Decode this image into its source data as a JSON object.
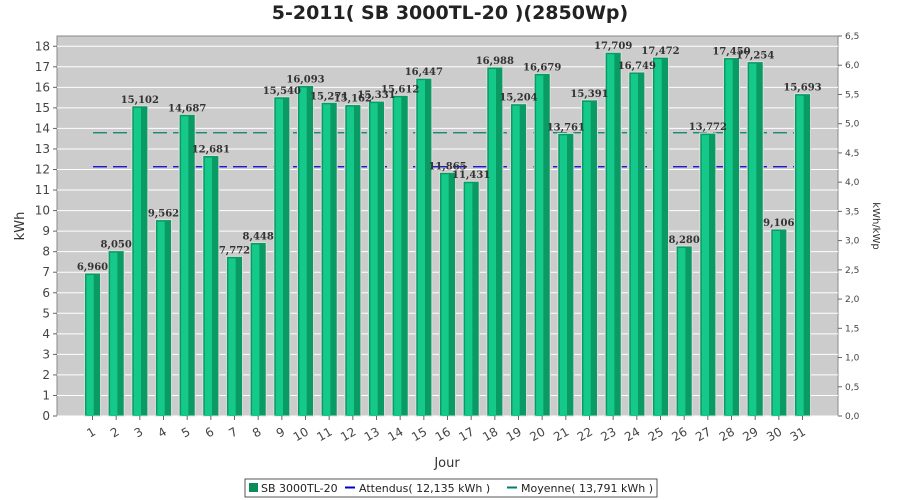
{
  "chart_data": {
    "type": "bar",
    "title": "5-2011( SB 3000TL-20 )(2850Wp)",
    "xlabel": "Jour",
    "ylabel": "kWh",
    "ylabel_right": "kWh/kWp",
    "ylim": [
      0,
      18.5
    ],
    "ylim_right": [
      0,
      6.5
    ],
    "yticks": [
      0,
      1,
      2,
      3,
      4,
      5,
      6,
      7,
      8,
      9,
      10,
      11,
      12,
      13,
      14,
      15,
      16,
      17,
      18
    ],
    "yticks_right": [
      "0,0",
      "0,5",
      "1,0",
      "1,5",
      "2,0",
      "2,5",
      "3,0",
      "3,5",
      "4,0",
      "4,5",
      "5,0",
      "5,5",
      "6,0",
      "6,5"
    ],
    "categories": [
      "1",
      "2",
      "3",
      "4",
      "5",
      "6",
      "7",
      "8",
      "9",
      "10",
      "11",
      "12",
      "13",
      "14",
      "15",
      "16",
      "17",
      "18",
      "19",
      "20",
      "21",
      "22",
      "23",
      "24",
      "25",
      "26",
      "27",
      "28",
      "29",
      "30",
      "31"
    ],
    "series": [
      {
        "name": "SB 3000TL-20",
        "values": [
          6.96,
          8.05,
          15.102,
          9.562,
          14.687,
          12.681,
          7.772,
          8.448,
          15.54,
          16.093,
          15.271,
          15.162,
          15.331,
          15.612,
          16.447,
          11.865,
          11.431,
          16.988,
          15.204,
          16.679,
          13.761,
          15.391,
          17.709,
          16.749,
          17.472,
          8.28,
          13.772,
          17.45,
          17.254,
          9.106,
          15.693
        ],
        "labels": [
          "6,960",
          "8,050",
          "15,102",
          "9,562",
          "14,687",
          "12,681",
          "7,772",
          "8,448",
          "15,540",
          "16,093",
          "15,271",
          "15,162",
          "15,331",
          "15,612",
          "16,447",
          "11,865",
          "11,431",
          "16,988",
          "15,204",
          "16,679",
          "13,761",
          "15,391",
          "17,709",
          "16,749",
          "17,472",
          "8,280",
          "13,772",
          "17,450",
          "17,254",
          "9,106",
          "15,693"
        ],
        "color": "#0fbf7f"
      }
    ],
    "lines": [
      {
        "name": "Attendus",
        "value": 12.135,
        "color": "#0000cc"
      },
      {
        "name": "Moyenne",
        "value": 13.791,
        "color": "#00806a"
      }
    ],
    "legend": {
      "position": "bottom",
      "items": [
        "SB 3000TL-20",
        "Attendus( 12,135 kWh )",
        "Moyenne( 13,791 kWh )"
      ]
    },
    "grid": true,
    "plot_background": "#cccccc"
  }
}
